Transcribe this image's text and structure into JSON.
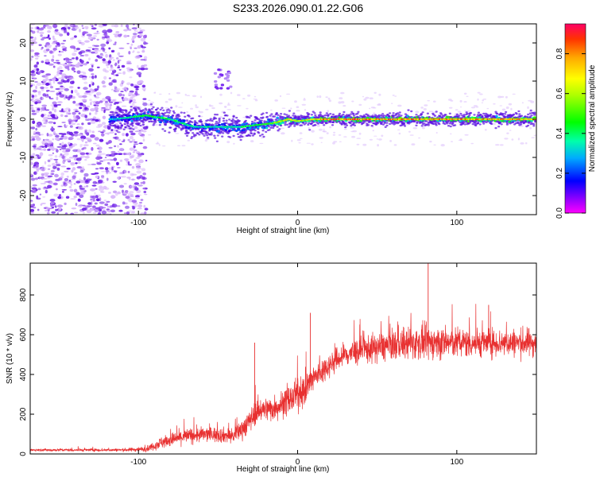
{
  "title": "S233.2026.090.01.22.G06",
  "colors": {
    "snr_line": "#e83030",
    "axis": "#000000",
    "spectrogram_bg": "#ffffff"
  },
  "chart_data": [
    {
      "type": "heatmap",
      "xlabel": "Height of straight line (km)",
      "ylabel": "Frequency (Hz)",
      "xlim": [
        -168,
        150
      ],
      "ylim": [
        -25,
        25
      ],
      "x_ticks": [
        -100,
        0,
        100
      ],
      "x_tick_labels": [
        "-100",
        "0",
        "100"
      ],
      "y_ticks": [
        -20,
        -10,
        0,
        10,
        20
      ],
      "y_tick_labels": [
        "-20",
        "-10",
        "0",
        "10",
        "20"
      ],
      "colorbar": {
        "label": "Normalized spectral amplitude",
        "range": [
          0,
          0.95
        ],
        "ticks": [
          0.0,
          0.2,
          0.4,
          0.6,
          0.8
        ],
        "tick_labels": [
          "0.0",
          "0.2",
          "0.4",
          "0.6",
          "0.8"
        ]
      },
      "signal_trace": {
        "description_points_x": [
          -115,
          -95,
          -80,
          -65,
          -50,
          -35,
          -25,
          -15,
          -5,
          0,
          10,
          20,
          40,
          80,
          120,
          150
        ],
        "frequency_hz": [
          0,
          1,
          0,
          -2,
          -2,
          -2,
          -1.5,
          -1,
          0,
          -0.5,
          0,
          0,
          0,
          0,
          0,
          0
        ],
        "amplitude": [
          0.35,
          0.5,
          0.45,
          0.4,
          0.4,
          0.45,
          0.5,
          0.6,
          0.75,
          0.7,
          0.8,
          0.9,
          0.9,
          0.88,
          0.85,
          0.85
        ]
      },
      "noise_cutoff_x": -95
    },
    {
      "type": "line",
      "xlabel": "Height of straight line (km)",
      "ylabel": "SNR (10 * v/v)",
      "xlim": [
        -168,
        150
      ],
      "ylim": [
        0,
        960
      ],
      "x_ticks": [
        -100,
        0,
        100
      ],
      "x_tick_labels": [
        "-100",
        "0",
        "100"
      ],
      "y_ticks": [
        0,
        200,
        400,
        600,
        800
      ],
      "y_tick_labels": [
        "0",
        "200",
        "400",
        "600",
        "800"
      ],
      "series": [
        {
          "name": "SNR",
          "envelope_x": [
            -168,
            -110,
            -95,
            -85,
            -70,
            -55,
            -40,
            -32,
            -25,
            -15,
            -5,
            5,
            10,
            20,
            30,
            40,
            60,
            80,
            100,
            120,
            150
          ],
          "envelope_mean": [
            20,
            20,
            25,
            60,
            90,
            100,
            90,
            150,
            220,
            230,
            270,
            330,
            380,
            450,
            500,
            520,
            550,
            560,
            560,
            560,
            560
          ],
          "envelope_spread": [
            10,
            12,
            20,
            50,
            60,
            60,
            60,
            90,
            90,
            100,
            110,
            130,
            120,
            90,
            100,
            110,
            120,
            130,
            120,
            110,
            110
          ],
          "peak_spikes": [
            {
              "x": -27,
              "y": 560
            },
            {
              "x": 8,
              "y": 710
            },
            {
              "x": 82,
              "y": 960
            },
            {
              "x": 120,
              "y": 750
            }
          ]
        }
      ]
    }
  ]
}
